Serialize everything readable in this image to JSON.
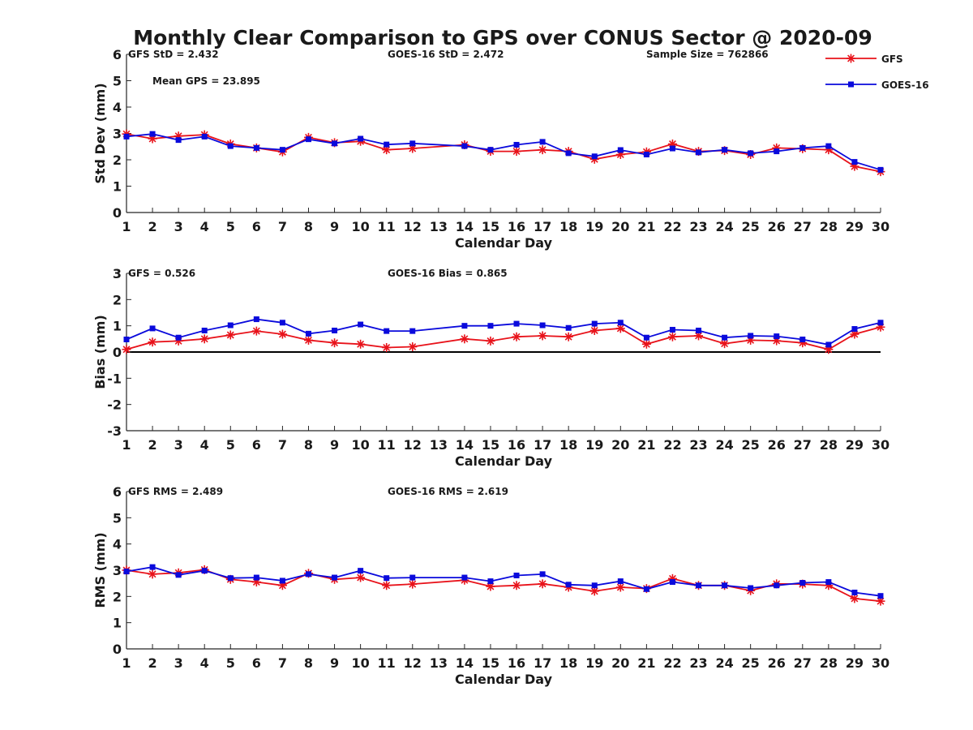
{
  "title": "Monthly Clear Comparison to GPS over CONUS Sector @ 2020-09",
  "colors": {
    "gfs": "#e8121a",
    "goes": "#0a0adc",
    "axis": "#262626"
  },
  "legend": [
    {
      "label": "GFS",
      "color": "#e8121a",
      "marker": "asterisk"
    },
    {
      "label": "GOES-16",
      "color": "#0a0adc",
      "marker": "square"
    }
  ],
  "chart_data": [
    {
      "type": "line",
      "ylabel": "Std Dev (mm)",
      "xlabel": "Calendar Day",
      "xlim": [
        1,
        30
      ],
      "ylim": [
        0,
        6
      ],
      "yticks": [
        0,
        1,
        2,
        3,
        4,
        5,
        6
      ],
      "xticks": [
        1,
        2,
        3,
        4,
        5,
        6,
        7,
        8,
        9,
        10,
        11,
        12,
        13,
        14,
        15,
        16,
        17,
        18,
        19,
        20,
        21,
        22,
        23,
        24,
        25,
        26,
        27,
        28,
        29,
        30
      ],
      "zero_line": false,
      "annotations": [
        "GFS StD = 2.432",
        "GOES-16 StD = 2.472",
        "Sample Size = 762866",
        "Mean GPS = 23.895"
      ],
      "series": [
        {
          "name": "GFS",
          "x": [
            1,
            2,
            3,
            4,
            5,
            6,
            7,
            8,
            9,
            10,
            11,
            12,
            14,
            15,
            16,
            17,
            18,
            19,
            20,
            21,
            22,
            23,
            24,
            25,
            26,
            27,
            28,
            29,
            30
          ],
          "values": [
            2.98,
            2.8,
            2.9,
            2.95,
            2.6,
            2.45,
            2.3,
            2.85,
            2.65,
            2.7,
            2.38,
            2.43,
            2.57,
            2.32,
            2.32,
            2.38,
            2.32,
            2.02,
            2.2,
            2.3,
            2.6,
            2.32,
            2.35,
            2.2,
            2.45,
            2.42,
            2.38,
            1.75,
            1.55
          ]
        },
        {
          "name": "GOES-16",
          "x": [
            1,
            2,
            3,
            4,
            5,
            6,
            7,
            8,
            9,
            10,
            11,
            12,
            14,
            15,
            16,
            17,
            18,
            19,
            20,
            21,
            22,
            23,
            24,
            25,
            26,
            27,
            28,
            29,
            30
          ],
          "values": [
            2.88,
            2.98,
            2.75,
            2.88,
            2.52,
            2.45,
            2.38,
            2.78,
            2.62,
            2.8,
            2.58,
            2.62,
            2.52,
            2.38,
            2.57,
            2.68,
            2.25,
            2.13,
            2.37,
            2.2,
            2.43,
            2.28,
            2.38,
            2.25,
            2.32,
            2.45,
            2.52,
            1.92,
            1.62
          ]
        }
      ]
    },
    {
      "type": "line",
      "ylabel": "Bias (mm)",
      "xlabel": "Calendar Day",
      "xlim": [
        1,
        30
      ],
      "ylim": [
        -3,
        3
      ],
      "yticks": [
        -3,
        -2,
        -1,
        0,
        1,
        2,
        3
      ],
      "xticks": [
        1,
        2,
        3,
        4,
        5,
        6,
        7,
        8,
        9,
        10,
        11,
        12,
        13,
        14,
        15,
        16,
        17,
        18,
        19,
        20,
        21,
        22,
        23,
        24,
        25,
        26,
        27,
        28,
        29,
        30
      ],
      "zero_line": true,
      "annotations": [
        "GFS = 0.526",
        "GOES-16 Bias = 0.865"
      ],
      "series": [
        {
          "name": "GFS",
          "x": [
            1,
            2,
            3,
            4,
            5,
            6,
            7,
            8,
            9,
            10,
            11,
            12,
            14,
            15,
            16,
            17,
            18,
            19,
            20,
            21,
            22,
            23,
            24,
            25,
            26,
            27,
            28,
            29,
            30
          ],
          "values": [
            0.1,
            0.38,
            0.42,
            0.5,
            0.65,
            0.8,
            0.68,
            0.45,
            0.35,
            0.3,
            0.17,
            0.2,
            0.5,
            0.42,
            0.58,
            0.62,
            0.58,
            0.82,
            0.9,
            0.3,
            0.58,
            0.62,
            0.32,
            0.45,
            0.43,
            0.35,
            0.1,
            0.68,
            0.95
          ]
        },
        {
          "name": "GOES-16",
          "x": [
            1,
            2,
            3,
            4,
            5,
            6,
            7,
            8,
            9,
            10,
            11,
            12,
            14,
            15,
            16,
            17,
            18,
            19,
            20,
            21,
            22,
            23,
            24,
            25,
            26,
            27,
            28,
            29,
            30
          ],
          "values": [
            0.48,
            0.9,
            0.55,
            0.82,
            1.02,
            1.25,
            1.12,
            0.7,
            0.82,
            1.05,
            0.8,
            0.8,
            1.0,
            1.0,
            1.08,
            1.02,
            0.92,
            1.08,
            1.12,
            0.55,
            0.85,
            0.82,
            0.55,
            0.62,
            0.6,
            0.48,
            0.28,
            0.88,
            1.12
          ]
        }
      ]
    },
    {
      "type": "line",
      "ylabel": "RMS (mm)",
      "xlabel": "Calendar Day",
      "xlim": [
        1,
        30
      ],
      "ylim": [
        0,
        6
      ],
      "yticks": [
        0,
        1,
        2,
        3,
        4,
        5,
        6
      ],
      "xticks": [
        1,
        2,
        3,
        4,
        5,
        6,
        7,
        8,
        9,
        10,
        11,
        12,
        13,
        14,
        15,
        16,
        17,
        18,
        19,
        20,
        21,
        22,
        23,
        24,
        25,
        26,
        27,
        28,
        29,
        30
      ],
      "zero_line": false,
      "annotations": [
        "GFS RMS = 2.489",
        "GOES-16 RMS = 2.619"
      ],
      "series": [
        {
          "name": "GFS",
          "x": [
            1,
            2,
            3,
            4,
            5,
            6,
            7,
            8,
            9,
            10,
            11,
            12,
            14,
            15,
            16,
            17,
            18,
            19,
            20,
            21,
            22,
            23,
            24,
            25,
            26,
            27,
            28,
            29,
            30
          ],
          "values": [
            3.0,
            2.85,
            2.9,
            3.02,
            2.65,
            2.55,
            2.42,
            2.88,
            2.65,
            2.72,
            2.42,
            2.47,
            2.62,
            2.38,
            2.42,
            2.48,
            2.35,
            2.2,
            2.35,
            2.3,
            2.68,
            2.42,
            2.42,
            2.22,
            2.48,
            2.47,
            2.42,
            1.92,
            1.82
          ]
        },
        {
          "name": "GOES-16",
          "x": [
            1,
            2,
            3,
            4,
            5,
            6,
            7,
            8,
            9,
            10,
            11,
            12,
            14,
            15,
            16,
            17,
            18,
            19,
            20,
            21,
            22,
            23,
            24,
            25,
            26,
            27,
            28,
            29,
            30
          ],
          "values": [
            2.95,
            3.12,
            2.82,
            2.98,
            2.7,
            2.72,
            2.6,
            2.85,
            2.72,
            2.98,
            2.7,
            2.72,
            2.72,
            2.58,
            2.8,
            2.85,
            2.45,
            2.42,
            2.58,
            2.28,
            2.55,
            2.42,
            2.42,
            2.32,
            2.42,
            2.52,
            2.55,
            2.15,
            2.02
          ]
        }
      ]
    }
  ]
}
